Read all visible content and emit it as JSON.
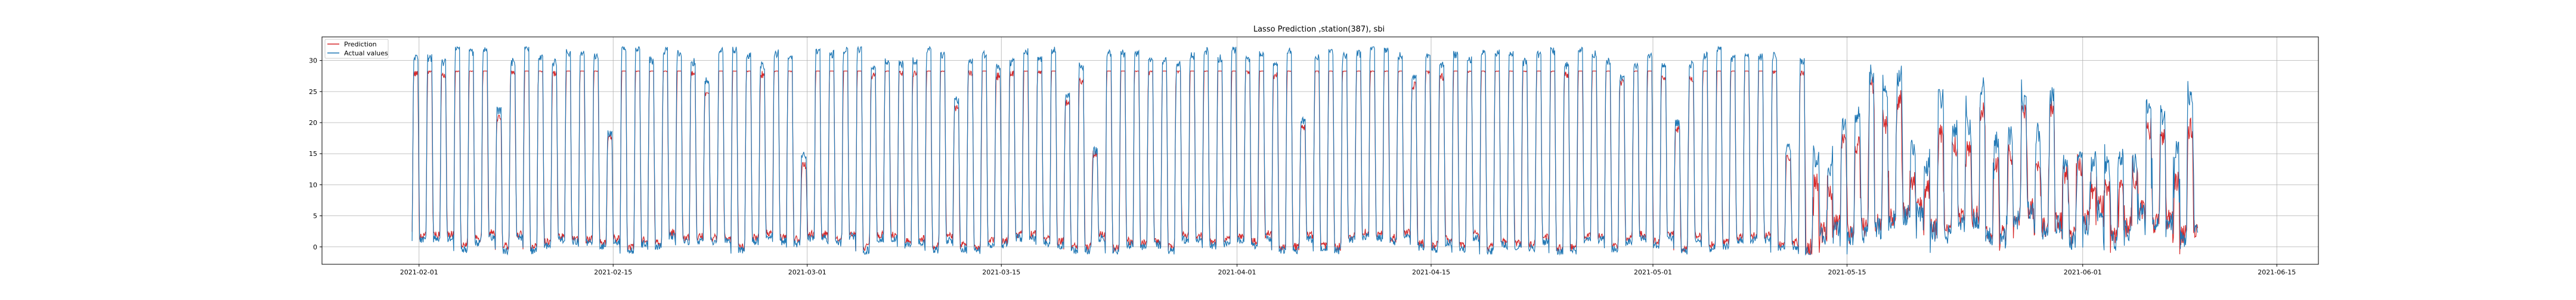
{
  "chart_data": {
    "type": "line",
    "title": "Lasso Prediction ,station(387), sbi",
    "xlabel": "",
    "ylabel": "",
    "x_range": [
      "2021-01-25",
      "2021-06-18"
    ],
    "data_range": [
      "2021-01-31",
      "2021-06-09"
    ],
    "ylim": [
      -2.8,
      33.8
    ],
    "grid": true,
    "legend_position": "top-left",
    "x_ticks": [
      "2021-02-01",
      "2021-02-15",
      "2021-03-01",
      "2021-03-15",
      "2021-04-01",
      "2021-04-15",
      "2021-05-01",
      "2021-05-15",
      "2021-06-01",
      "2021-06-15"
    ],
    "y_ticks": [
      0,
      5,
      10,
      15,
      20,
      25,
      30
    ],
    "series": [
      {
        "name": "Prediction",
        "color": "#d62728",
        "pattern": "daily cycle, values between about 0 and 28; peaks near 27-28 during most days, lower and noisier (3-20) after mid-May"
      },
      {
        "name": "Actual values",
        "color": "#1f77b4",
        "pattern": "daily cycle, values between about -1 and 32; peaks near 31-32 during most days, lower and noisier (2-27) after mid-May"
      }
    ]
  }
}
